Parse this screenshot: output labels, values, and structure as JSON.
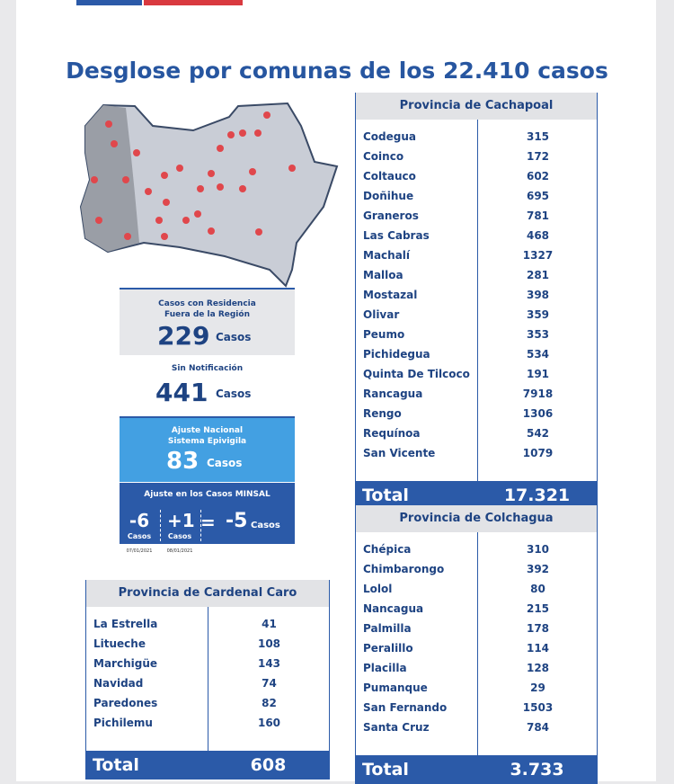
{
  "header": {
    "title": "Desglose por comunas de los 22.410 casos"
  },
  "summary": {
    "outside_region": {
      "label": "Casos con Residencia Fuera de la Región",
      "value": 229,
      "unit": "Casos"
    },
    "no_notification": {
      "label": "Sin Notificación",
      "value": 441,
      "unit": "Casos"
    },
    "national_adjustment": {
      "label": "Ajuste Nacional Sistema Epivigila",
      "value": 83,
      "unit": "Casos"
    },
    "minsal_adjustment": {
      "label": "Ajuste en los Casos MINSAL",
      "items": [
        {
          "value": "-6",
          "unit": "Casos",
          "date": "07/01/2021"
        },
        {
          "value": "+1",
          "unit": "Casos",
          "date": "08/01/2021"
        }
      ],
      "equals": "=",
      "result": {
        "value": "-5",
        "unit": "Casos"
      }
    }
  },
  "tables": [
    {
      "title": "Provincia de Cachapoal",
      "rows": [
        [
          "Codegua",
          315
        ],
        [
          "Coinco",
          172
        ],
        [
          "Coltauco",
          602
        ],
        [
          "Doñihue",
          695
        ],
        [
          "Graneros",
          781
        ],
        [
          "Las Cabras",
          468
        ],
        [
          "Machalí",
          1327
        ],
        [
          "Malloa",
          281
        ],
        [
          "Mostazal",
          398
        ],
        [
          "Olivar",
          359
        ],
        [
          "Peumo",
          353
        ],
        [
          "Pichidegua",
          534
        ],
        [
          "Quinta De Tilcoco",
          191
        ],
        [
          "Rancagua",
          7918
        ],
        [
          "Rengo",
          1306
        ],
        [
          "Requínoa",
          542
        ],
        [
          "San Vicente",
          1079
        ]
      ],
      "total_label": "Total",
      "total": "17.321"
    },
    {
      "title": "Provincia de Colchagua",
      "rows": [
        [
          "Chépica",
          310
        ],
        [
          "Chimbarongo",
          392
        ],
        [
          "Lolol",
          80
        ],
        [
          "Nancagua",
          215
        ],
        [
          "Palmilla",
          178
        ],
        [
          "Peralillo",
          114
        ],
        [
          "Placilla",
          128
        ],
        [
          "Pumanque",
          29
        ],
        [
          "San Fernando",
          1503
        ],
        [
          "Santa Cruz",
          784
        ]
      ],
      "total_label": "Total",
      "total": "3.733"
    },
    {
      "title": "Provincia de Cardenal Caro",
      "rows": [
        [
          "La Estrella",
          41
        ],
        [
          "Litueche",
          108
        ],
        [
          "Marchigüe",
          143
        ],
        [
          "Navidad",
          74
        ],
        [
          "Paredones",
          82
        ],
        [
          "Pichilemu",
          160
        ]
      ],
      "total_label": "Total",
      "total": "608"
    }
  ]
}
